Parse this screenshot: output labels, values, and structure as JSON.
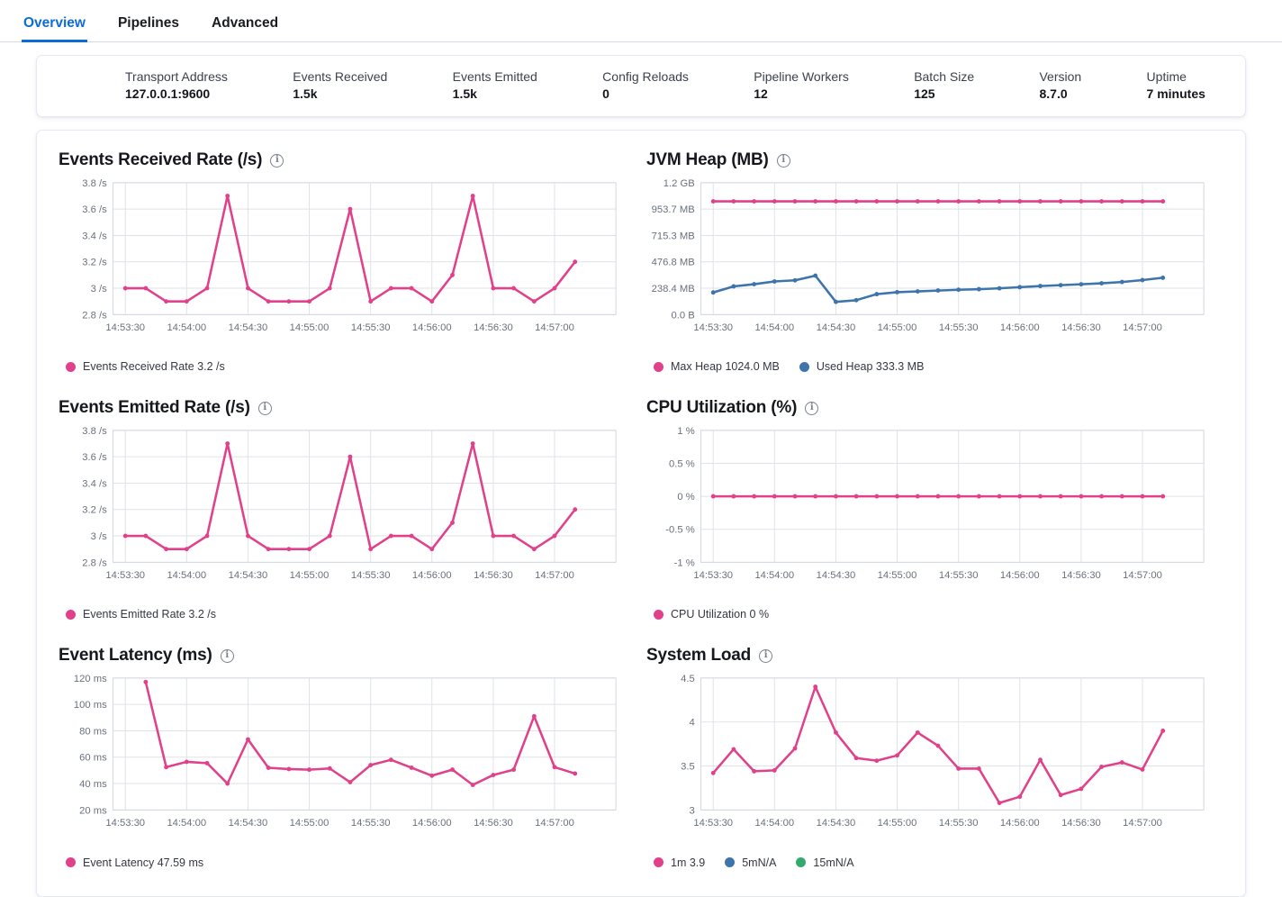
{
  "tabs": [
    {
      "label": "Overview",
      "active": true
    },
    {
      "label": "Pipelines",
      "active": false
    },
    {
      "label": "Advanced",
      "active": false
    }
  ],
  "summary": {
    "stats": [
      {
        "label": "Transport Address",
        "value": "127.0.0.1:9600"
      },
      {
        "label": "Events Received",
        "value": "1.5k"
      },
      {
        "label": "Events Emitted",
        "value": "1.5k"
      },
      {
        "label": "Config Reloads",
        "value": "0"
      },
      {
        "label": "Pipeline Workers",
        "value": "12"
      },
      {
        "label": "Batch Size",
        "value": "125"
      },
      {
        "label": "Version",
        "value": "8.7.0"
      },
      {
        "label": "Uptime",
        "value": "7 minutes"
      }
    ]
  },
  "colors": {
    "pink": "#e0418a",
    "blue": "#3d74ac",
    "green": "#33ab6e",
    "active_tab": "#0d6bd9"
  },
  "chart_data": [
    {
      "id": "events-received-rate",
      "type": "line",
      "title": "Events Received Rate (/s)",
      "ylim": [
        2.8,
        3.8
      ],
      "y_ticks": [
        {
          "label": "3.8 /s",
          "value": 3.8
        },
        {
          "label": "3.6 /s",
          "value": 3.6
        },
        {
          "label": "3.4 /s",
          "value": 3.4
        },
        {
          "label": "3.2 /s",
          "value": 3.2
        },
        {
          "label": "3 /s",
          "value": 3.0
        },
        {
          "label": "2.8 /s",
          "value": 2.8
        }
      ],
      "x_labels": [
        "14:53:30",
        "14:54:00",
        "14:54:30",
        "14:55:00",
        "14:55:30",
        "14:56:00",
        "14:56:30",
        "14:57:00"
      ],
      "series": [
        {
          "name": "Events Received Rate",
          "color_key": "pink",
          "start_offset_s": 0,
          "interval_s": 10,
          "values": [
            3,
            3,
            2.9,
            2.9,
            3,
            3.7,
            3,
            2.9,
            2.9,
            2.9,
            3,
            3.6,
            2.9,
            3,
            3,
            2.9,
            3.1,
            3.7,
            3,
            3,
            2.9,
            3,
            3.2
          ]
        }
      ],
      "legend": [
        {
          "label": "Events Received Rate 3.2 /s",
          "color_key": "pink"
        }
      ]
    },
    {
      "id": "jvm-heap",
      "type": "line",
      "title": "JVM Heap (MB)",
      "ylim": [
        0,
        1192.1
      ],
      "y_ticks": [
        {
          "label": "1.2 GB",
          "value": 1192.1
        },
        {
          "label": "953.7 MB",
          "value": 953.7
        },
        {
          "label": "715.3 MB",
          "value": 715.3
        },
        {
          "label": "476.8 MB",
          "value": 476.8
        },
        {
          "label": "238.4 MB",
          "value": 238.4
        },
        {
          "label": "0.0 B",
          "value": 0
        }
      ],
      "x_labels": [
        "14:53:30",
        "14:54:00",
        "14:54:30",
        "14:55:00",
        "14:55:30",
        "14:56:00",
        "14:56:30",
        "14:57:00"
      ],
      "series": [
        {
          "name": "Max Heap",
          "color_key": "pink",
          "start_offset_s": 0,
          "interval_s": 10,
          "values": [
            1024,
            1024,
            1024,
            1024,
            1024,
            1024,
            1024,
            1024,
            1024,
            1024,
            1024,
            1024,
            1024,
            1024,
            1024,
            1024,
            1024,
            1024,
            1024,
            1024,
            1024,
            1024,
            1024
          ]
        },
        {
          "name": "Used Heap",
          "color_key": "blue",
          "start_offset_s": 0,
          "interval_s": 10,
          "values": [
            200,
            255,
            275,
            300,
            310,
            352,
            115,
            130,
            185,
            203,
            210,
            218,
            225,
            230,
            238,
            248,
            258,
            266,
            274,
            283,
            295,
            312,
            333.3
          ]
        }
      ],
      "legend": [
        {
          "label": "Max Heap 1024.0 MB",
          "color_key": "pink"
        },
        {
          "label": "Used Heap 333.3 MB",
          "color_key": "blue"
        }
      ]
    },
    {
      "id": "events-emitted-rate",
      "type": "line",
      "title": "Events Emitted Rate (/s)",
      "ylim": [
        2.8,
        3.8
      ],
      "y_ticks": [
        {
          "label": "3.8 /s",
          "value": 3.8
        },
        {
          "label": "3.6 /s",
          "value": 3.6
        },
        {
          "label": "3.4 /s",
          "value": 3.4
        },
        {
          "label": "3.2 /s",
          "value": 3.2
        },
        {
          "label": "3 /s",
          "value": 3.0
        },
        {
          "label": "2.8 /s",
          "value": 2.8
        }
      ],
      "x_labels": [
        "14:53:30",
        "14:54:00",
        "14:54:30",
        "14:55:00",
        "14:55:30",
        "14:56:00",
        "14:56:30",
        "14:57:00"
      ],
      "series": [
        {
          "name": "Events Emitted Rate",
          "color_key": "pink",
          "start_offset_s": 0,
          "interval_s": 10,
          "values": [
            3,
            3,
            2.9,
            2.9,
            3,
            3.7,
            3,
            2.9,
            2.9,
            2.9,
            3,
            3.6,
            2.9,
            3,
            3,
            2.9,
            3.1,
            3.7,
            3,
            3,
            2.9,
            3,
            3.2
          ]
        }
      ],
      "legend": [
        {
          "label": "Events Emitted Rate 3.2 /s",
          "color_key": "pink"
        }
      ]
    },
    {
      "id": "cpu-utilization",
      "type": "line",
      "title": "CPU Utilization (%)",
      "ylim": [
        -1,
        1
      ],
      "y_ticks": [
        {
          "label": "1 %",
          "value": 1
        },
        {
          "label": "0.5 %",
          "value": 0.5
        },
        {
          "label": "0 %",
          "value": 0
        },
        {
          "label": "-0.5 %",
          "value": -0.5
        },
        {
          "label": "-1 %",
          "value": -1
        }
      ],
      "x_labels": [
        "14:53:30",
        "14:54:00",
        "14:54:30",
        "14:55:00",
        "14:55:30",
        "14:56:00",
        "14:56:30",
        "14:57:00"
      ],
      "series": [
        {
          "name": "CPU Utilization",
          "color_key": "pink",
          "start_offset_s": 0,
          "interval_s": 10,
          "values": [
            0,
            0,
            0,
            0,
            0,
            0,
            0,
            0,
            0,
            0,
            0,
            0,
            0,
            0,
            0,
            0,
            0,
            0,
            0,
            0,
            0,
            0,
            0
          ]
        }
      ],
      "legend": [
        {
          "label": "CPU Utilization 0 %",
          "color_key": "pink"
        }
      ]
    },
    {
      "id": "event-latency",
      "type": "line",
      "title": "Event Latency (ms)",
      "ylim": [
        20,
        120
      ],
      "y_ticks": [
        {
          "label": "120 ms",
          "value": 120
        },
        {
          "label": "100 ms",
          "value": 100
        },
        {
          "label": "80 ms",
          "value": 80
        },
        {
          "label": "60 ms",
          "value": 60
        },
        {
          "label": "40 ms",
          "value": 40
        },
        {
          "label": "20 ms",
          "value": 20
        }
      ],
      "x_labels": [
        "14:53:30",
        "14:54:00",
        "14:54:30",
        "14:55:00",
        "14:55:30",
        "14:56:00",
        "14:56:30",
        "14:57:00"
      ],
      "series": [
        {
          "name": "Event Latency",
          "color_key": "pink",
          "start_offset_s": 10,
          "interval_s": 10,
          "values": [
            117,
            52.5,
            56.5,
            55.5,
            40,
            73.5,
            52,
            51,
            50.5,
            51.5,
            41,
            54,
            58,
            52,
            46,
            50.5,
            39,
            46.5,
            50.5,
            91,
            52.5,
            47.59
          ]
        }
      ],
      "legend": [
        {
          "label": "Event Latency 47.59 ms",
          "color_key": "pink"
        }
      ]
    },
    {
      "id": "system-load",
      "type": "line",
      "title": "System Load",
      "ylim": [
        3,
        4.5
      ],
      "y_ticks": [
        {
          "label": "4.5",
          "value": 4.5
        },
        {
          "label": "4",
          "value": 4
        },
        {
          "label": "3.5",
          "value": 3.5
        },
        {
          "label": "3",
          "value": 3
        }
      ],
      "x_labels": [
        "14:53:30",
        "14:54:00",
        "14:54:30",
        "14:55:00",
        "14:55:30",
        "14:56:00",
        "14:56:30",
        "14:57:00"
      ],
      "series": [
        {
          "name": "1m",
          "color_key": "pink",
          "start_offset_s": 0,
          "interval_s": 10,
          "values": [
            3.42,
            3.69,
            3.44,
            3.45,
            3.7,
            4.4,
            3.88,
            3.59,
            3.56,
            3.62,
            3.88,
            3.73,
            3.47,
            3.47,
            3.08,
            3.15,
            3.57,
            3.17,
            3.24,
            3.49,
            3.54,
            3.46,
            3.9
          ]
        }
      ],
      "legend": [
        {
          "label": "1m 3.9",
          "color_key": "pink"
        },
        {
          "label": "5mN/A",
          "color_key": "blue"
        },
        {
          "label": "15mN/A",
          "color_key": "green"
        }
      ]
    }
  ]
}
